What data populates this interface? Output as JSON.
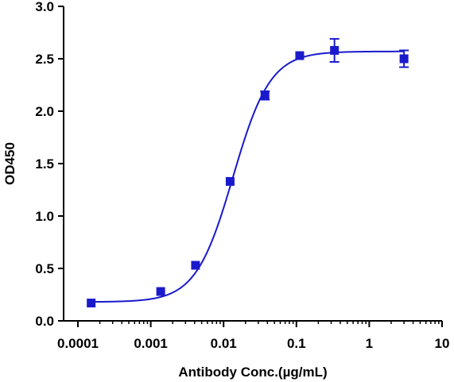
{
  "chart_data": {
    "type": "scatter",
    "xlabel": "Antibody Conc.(µg/mL)",
    "ylabel": "OD450",
    "x_scale": "log",
    "xlim": [
      0.0001,
      10
    ],
    "ylim": [
      0.0,
      3.0
    ],
    "x_tick_values": [
      0.0001,
      0.001,
      0.01,
      0.1,
      1,
      10
    ],
    "x_tick_labels": [
      "0.0001",
      "0.001",
      "0.01",
      "0.1",
      "1",
      "10"
    ],
    "y_tick_values": [
      0.0,
      0.5,
      1.0,
      1.5,
      2.0,
      2.5,
      3.0
    ],
    "y_tick_labels": [
      "0.0",
      "0.5",
      "1.0",
      "1.5",
      "2.0",
      "2.5",
      "3.0"
    ],
    "grid": false,
    "series": [
      {
        "marker": "square",
        "color": "#1a1acc",
        "x": [
          0.000152,
          0.00137,
          0.00412,
          0.0123,
          0.037,
          0.111,
          0.333,
          3.0
        ],
        "y": [
          0.17,
          0.28,
          0.53,
          1.33,
          2.15,
          2.53,
          2.58,
          2.5
        ],
        "error": [
          0.02,
          0.02,
          0.02,
          0.02,
          0.04,
          0.02,
          0.11,
          0.08
        ]
      }
    ],
    "fit_curve": {
      "type": "4PL",
      "color": "#1a1acc",
      "bottom": 0.18,
      "top": 2.57,
      "ec50": 0.0135,
      "hill": 1.7
    }
  }
}
